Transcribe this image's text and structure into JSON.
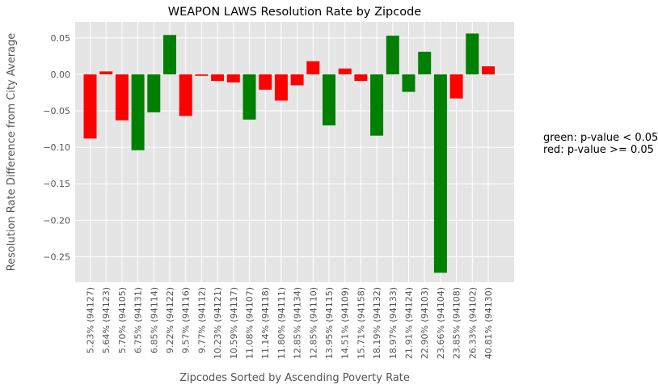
{
  "chart_data": {
    "type": "bar",
    "title": "WEAPON LAWS Resolution Rate by Zipcode",
    "xlabel": "Zipcodes Sorted by Ascending Poverty Rate",
    "ylabel": "Resolution Rate Difference from City Average",
    "ylim": [
      -0.285,
      0.072
    ],
    "yticks": [
      0.05,
      0.0,
      -0.05,
      -0.1,
      -0.15,
      -0.2,
      -0.25
    ],
    "ytick_labels": [
      "0.05",
      "0.00",
      "−0.05",
      "−0.10",
      "−0.15",
      "−0.20",
      "−0.25"
    ],
    "grid": true,
    "categories": [
      "5.23%  (94127)",
      "5.64%  (94123)",
      "5.70%  (94105)",
      "6.75%  (94131)",
      "6.85%  (94114)",
      "9.22%  (94122)",
      "9.57%  (94116)",
      "9.77%  (94112)",
      "10.23%  (94121)",
      "10.59%  (94117)",
      "11.08%  (94107)",
      "11.14%  (94118)",
      "11.80%  (94111)",
      "12.85%  (94134)",
      "12.85%  (94110)",
      "13.95%  (94115)",
      "14.51%  (94109)",
      "15.71%  (94158)",
      "18.19%  (94132)",
      "18.97%  (94133)",
      "21.91%  (94124)",
      "22.90%  (94103)",
      "23.66%  (94104)",
      "23.85%  (94108)",
      "26.33%  (94102)",
      "40.81%  (94130)"
    ],
    "values": [
      -0.088,
      0.004,
      -0.063,
      -0.104,
      -0.052,
      0.054,
      -0.057,
      -0.002,
      -0.009,
      -0.011,
      -0.062,
      -0.021,
      -0.036,
      -0.015,
      0.018,
      -0.07,
      0.008,
      -0.009,
      -0.084,
      0.053,
      -0.024,
      0.031,
      -0.272,
      -0.033,
      0.056,
      0.011
    ],
    "significant": [
      false,
      false,
      false,
      true,
      true,
      true,
      false,
      false,
      false,
      false,
      true,
      false,
      false,
      false,
      false,
      true,
      false,
      false,
      true,
      true,
      true,
      true,
      true,
      false,
      true,
      false
    ],
    "colors": {
      "significant": "#008000",
      "not_significant": "#ff0000",
      "plot_background": "#e5e5e5",
      "grid": "#ffffff"
    },
    "annotations": [
      "green: p-value < 0.05",
      "red: p-value >= 0.05"
    ]
  }
}
